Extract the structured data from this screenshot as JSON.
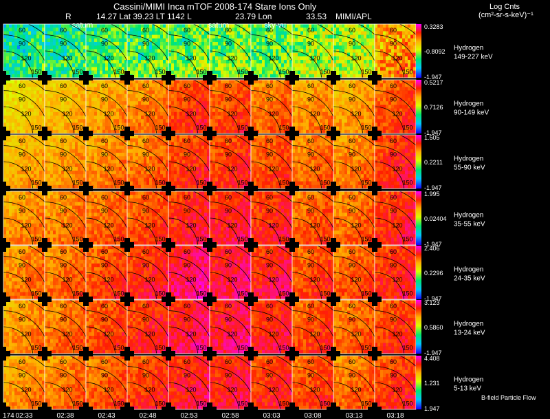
{
  "header": {
    "title": "Cassini/MIMI Inca mTOF  2008-174   Stare   Ions Only",
    "r_label": "R",
    "position_values": "14.27 Lat 39.23 LT 1142 L",
    "lon_value": "23.79 Lon",
    "extra_value": "33.53",
    "institution": "MIMI/APL",
    "units_line1": "Log Cnts",
    "units_line2": "(cm²-sr-s-keV)⁻¹"
  },
  "footer": {
    "date_prefix": "174",
    "bfield_label": "B-field Particle Flow"
  },
  "colors": {
    "background": "#000000",
    "grid_lines": "#ffffff",
    "contours": "#000000"
  },
  "chart_data": {
    "type": "heatmap",
    "title": "Cassini/MIMI Inca mTOF  2008-174   Stare   Ions Only",
    "colormap": "rainbow (blue-cyan-green-yellow-orange-red-magenta)",
    "times": [
      "02:33",
      "02:38",
      "02:43",
      "02:48",
      "02:53",
      "02:58",
      "03:03",
      "03:08",
      "03:13",
      "03:18"
    ],
    "overlay_labels": [
      "saturn",
      "saturn",
      "sky-vu"
    ],
    "contour_labels": [
      "60",
      "90",
      "120",
      "150"
    ],
    "rows": [
      {
        "species": "Hydrogen",
        "energy": "149-227 keV",
        "cmax": "0.3283",
        "cmid": "-0.8092",
        "cmin": "-1.947",
        "level": [
          0.35,
          0.35,
          0.4,
          0.42,
          0.45,
          0.45,
          0.42,
          0.48,
          0.5,
          0.7
        ]
      },
      {
        "species": "Hydrogen",
        "energy": "90-149 keV",
        "cmax": "0.5217",
        "cmid": "0.7126",
        "cmin": "-1.947",
        "level": [
          0.62,
          0.66,
          0.7,
          0.74,
          0.82,
          0.8,
          0.76,
          0.72,
          0.7,
          0.8
        ]
      },
      {
        "species": "Hydrogen",
        "energy": "55-90 keV",
        "cmax": "1.505",
        "cmid": "0.2211",
        "cmin": "-1.947",
        "level": [
          0.68,
          0.7,
          0.73,
          0.76,
          0.82,
          0.82,
          0.8,
          0.76,
          0.74,
          0.84
        ]
      },
      {
        "species": "Hydrogen",
        "energy": "35-55 keV",
        "cmax": "1.995",
        "cmid": "0.02404",
        "cmin": "-1.947",
        "level": [
          0.72,
          0.74,
          0.77,
          0.8,
          0.85,
          0.86,
          0.84,
          0.78,
          0.76,
          0.84
        ]
      },
      {
        "species": "Hydrogen",
        "energy": "24-35 keV",
        "cmax": "2.406",
        "cmid": "0.2296",
        "cmin": "-1.947",
        "level": [
          0.74,
          0.76,
          0.8,
          0.84,
          0.9,
          0.88,
          0.86,
          0.8,
          0.78,
          0.84
        ]
      },
      {
        "species": "Hydrogen",
        "energy": "13-24 keV",
        "cmax": "3.123",
        "cmid": "0.5860",
        "cmin": "-1.947",
        "level": [
          0.72,
          0.76,
          0.8,
          0.84,
          0.88,
          0.88,
          0.85,
          0.8,
          0.77,
          0.82
        ]
      },
      {
        "species": "Hydrogen",
        "energy": "5-13 keV",
        "cmax": "4.408",
        "cmid": "1.231",
        "cmin": "1.947",
        "level": [
          0.72,
          0.75,
          0.78,
          0.82,
          0.86,
          0.86,
          0.83,
          0.8,
          0.76,
          0.82
        ]
      }
    ]
  }
}
